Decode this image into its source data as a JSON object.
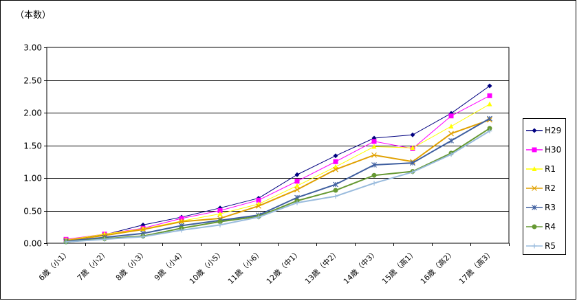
{
  "chart_data": {
    "type": "line",
    "title": "",
    "ylabel": "（本数）",
    "xlabel": "",
    "ylim": [
      0,
      3
    ],
    "yticks": [
      "0.00",
      "0.50",
      "1.00",
      "1.50",
      "2.00",
      "2.50",
      "3.00"
    ],
    "grid": true,
    "legend_position": "right",
    "categories": [
      "6歳（小1）",
      "7歳（小2）",
      "8歳（小3）",
      "9歳（小4）",
      "10歳（小5）",
      "11歳（小6）",
      "12歳（中1）",
      "13歳（中2）",
      "14歳（中3）",
      "15歳（高1）",
      "16歳（高2）",
      "17歳（高3）"
    ],
    "series": [
      {
        "name": "H29",
        "color": "#000080",
        "marker": "diamond",
        "values": [
          0.05,
          0.13,
          0.28,
          0.4,
          0.54,
          0.69,
          1.05,
          1.34,
          1.61,
          1.66,
          1.99,
          2.41
        ]
      },
      {
        "name": "H30",
        "color": "#FF00FF",
        "marker": "square",
        "values": [
          0.06,
          0.14,
          0.23,
          0.38,
          0.5,
          0.66,
          0.95,
          1.25,
          1.56,
          1.45,
          1.95,
          2.26
        ]
      },
      {
        "name": "R1",
        "color": "#FFFF00",
        "marker": "triangle",
        "values": [
          0.05,
          0.14,
          0.22,
          0.34,
          0.45,
          0.6,
          0.88,
          1.17,
          1.48,
          1.46,
          1.79,
          2.13
        ]
      },
      {
        "name": "R2",
        "color": "#E0A000",
        "marker": "x",
        "values": [
          0.04,
          0.12,
          0.21,
          0.33,
          0.38,
          0.57,
          0.82,
          1.13,
          1.35,
          1.25,
          1.68,
          1.89
        ]
      },
      {
        "name": "R3",
        "color": "#3F5F9F",
        "marker": "asterisk",
        "values": [
          0.03,
          0.09,
          0.15,
          0.27,
          0.35,
          0.43,
          0.7,
          0.9,
          1.2,
          1.23,
          1.57,
          1.91
        ]
      },
      {
        "name": "R4",
        "color": "#669933",
        "marker": "circle",
        "values": [
          0.02,
          0.07,
          0.11,
          0.23,
          0.33,
          0.41,
          0.65,
          0.81,
          1.04,
          1.1,
          1.38,
          1.76
        ]
      },
      {
        "name": "R5",
        "color": "#99BBDD",
        "marker": "plus",
        "values": [
          0.02,
          0.06,
          0.1,
          0.2,
          0.28,
          0.4,
          0.62,
          0.72,
          0.92,
          1.09,
          1.36,
          1.72
        ]
      }
    ]
  }
}
